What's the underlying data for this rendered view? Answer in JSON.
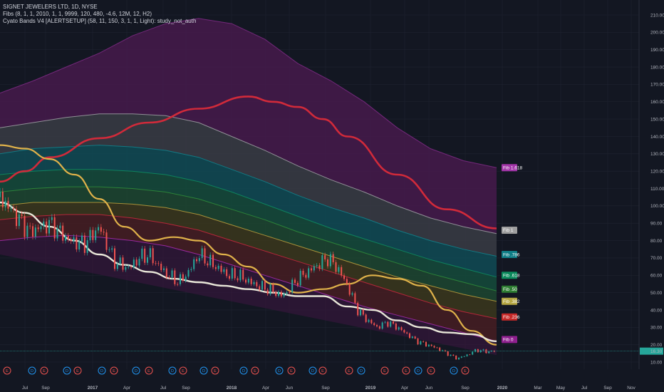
{
  "legend": {
    "line1": "SIGNET JEWELERS LTD, 1D, NYSE",
    "line2": "Fibs (8, 1, 1, 2010, 1, 1, 9999, 120, 480, -4.6, 12M, 12, H2)",
    "line3": "Cyato Bands V4 [ALERTSETUP] (58, 11, 150, 3, 1, 1, Light): study_not_auth"
  },
  "colors": {
    "background": "#131722",
    "grid": "#1f2330",
    "purple_band": "#4a1a4f",
    "grey_band": "#3c3f48",
    "teal_band": "#0f5760",
    "green_band": "#1d4a32",
    "olive_band": "#3d3a1c",
    "red_band": "#4a1d22",
    "red_line": "#d12a3a",
    "gold_line": "#e0b24a",
    "white_line": "#e8e6d8",
    "price_up": "#26a69a",
    "price_down": "#ef5350",
    "current_price_bg": "#26a69a"
  },
  "chart_data": {
    "type": "line",
    "title": "SIGNET JEWELERS LTD, 1D, NYSE",
    "ylim": [
      7,
      215
    ],
    "y_ticks": [
      "210.00",
      "200.00",
      "190.00",
      "180.00",
      "170.00",
      "160.00",
      "150.00",
      "140.00",
      "130.00",
      "120.00",
      "110.00",
      "100.00",
      "90.00",
      "80.00",
      "70.00",
      "60.00",
      "50.00",
      "40.00",
      "30.00",
      "20.00",
      "10.00"
    ],
    "x_ticks": [
      "Jul",
      "Sep",
      "2017",
      "Apr",
      "Jul",
      "Sep",
      "2018",
      "Apr",
      "Jun",
      "Sep",
      "2019",
      "Apr",
      "Jun",
      "Sep",
      "2020",
      "Mar",
      "May",
      "Jul",
      "Sep",
      "Nov"
    ],
    "current_price": "16.30",
    "fib_levels": [
      {
        "label": "Fib 1.618",
        "value": 122,
        "color": "#a335a8"
      },
      {
        "label": "Fib 1",
        "value": 86,
        "color": "#9e9e9e"
      },
      {
        "label": "Fib .786",
        "value": 72,
        "color": "#0e7d86"
      },
      {
        "label": "Fib .618",
        "value": 60,
        "color": "#0a8a5c"
      },
      {
        "label": "Fib .50",
        "value": 52,
        "color": "#2e7d32"
      },
      {
        "label": "Fib .382",
        "value": 45,
        "color": "#b5a642"
      },
      {
        "label": "Fib .236",
        "value": 36,
        "color": "#c62828"
      },
      {
        "label": "Fib 0",
        "value": 23,
        "color": "#8e1f8e"
      }
    ],
    "band_levels": [
      {
        "name": "1.618",
        "values": [
          165,
          172,
          180,
          188,
          198,
          205,
          208,
          205,
          196,
          182,
          172,
          160,
          145,
          133,
          126,
          122
        ]
      },
      {
        "name": "1",
        "values": [
          145,
          148,
          151,
          153,
          153,
          152,
          148,
          140,
          132,
          123,
          115,
          108,
          100,
          93,
          88,
          84
        ]
      },
      {
        "name": ".786",
        "values": [
          130,
          133,
          134,
          135,
          134,
          132,
          128,
          121,
          114,
          106,
          99,
          93,
          86,
          80,
          75,
          71
        ]
      },
      {
        "name": ".618",
        "values": [
          118,
          120,
          121,
          121,
          120,
          118,
          114,
          108,
          101,
          94,
          87,
          81,
          75,
          69,
          64,
          59
        ]
      },
      {
        "name": ".50",
        "values": [
          108,
          110,
          111,
          111,
          110,
          108,
          104,
          98,
          92,
          85,
          79,
          73,
          67,
          61,
          56,
          51
        ]
      },
      {
        "name": ".382",
        "values": [
          100,
          102,
          102,
          102,
          101,
          99,
          95,
          89,
          83,
          77,
          71,
          65,
          59,
          54,
          49,
          45
        ]
      },
      {
        "name": ".236",
        "values": [
          92,
          94,
          95,
          95,
          93,
          90,
          86,
          80,
          74,
          68,
          62,
          56,
          50,
          44,
          39,
          35
        ]
      },
      {
        "name": "0",
        "values": [
          80,
          82,
          83,
          82,
          80,
          77,
          72,
          66,
          60,
          54,
          48,
          42,
          37,
          32,
          27,
          22
        ]
      }
    ],
    "series": [
      {
        "name": "red",
        "x": [
          0,
          5,
          10,
          20,
          30,
          40,
          50,
          55,
          60,
          65,
          70,
          80,
          90,
          100
        ],
        "values": [
          114,
          120,
          128,
          139,
          148,
          156,
          163,
          160,
          157,
          150,
          140,
          118,
          98,
          87
        ]
      },
      {
        "name": "gold",
        "x": [
          0,
          5,
          10,
          15,
          20,
          25,
          30,
          35,
          40,
          45,
          50,
          55,
          60,
          65,
          70,
          75,
          80,
          85,
          90,
          95,
          100
        ],
        "values": [
          135,
          133,
          127,
          118,
          104,
          88,
          80,
          82,
          80,
          72,
          65,
          55,
          50,
          52,
          55,
          60,
          58,
          54,
          40,
          28,
          20
        ]
      },
      {
        "name": "white",
        "x": [
          0,
          5,
          10,
          15,
          20,
          25,
          30,
          35,
          40,
          45,
          50,
          55,
          60,
          65,
          70,
          75,
          80,
          85,
          90,
          95,
          100
        ],
        "values": [
          102,
          96,
          88,
          80,
          72,
          66,
          62,
          58,
          56,
          54,
          52,
          50,
          48,
          48,
          42,
          40,
          34,
          30,
          27,
          26,
          22
        ]
      },
      {
        "name": "price",
        "x": [
          0,
          3,
          6,
          10,
          14,
          17,
          20,
          23,
          26,
          28,
          30,
          33,
          36,
          38,
          40,
          43,
          46,
          48,
          51,
          54,
          57,
          60,
          62,
          64,
          66,
          68,
          70,
          72,
          74,
          76,
          78,
          80,
          82,
          84,
          86,
          88,
          90,
          92,
          94,
          96,
          98,
          100
        ],
        "values": [
          105,
          95,
          85,
          90,
          80,
          78,
          88,
          68,
          64,
          70,
          72,
          62,
          56,
          62,
          72,
          66,
          60,
          60,
          55,
          52,
          48,
          58,
          62,
          66,
          70,
          64,
          54,
          40,
          34,
          30,
          33,
          30,
          26,
          22,
          20,
          18,
          15,
          12,
          14,
          17,
          16,
          16.3
        ]
      }
    ],
    "event_markers": [
      {
        "label": "E",
        "type": "earnings"
      },
      {
        "label": "D",
        "type": "dividend"
      },
      {
        "label": "E",
        "type": "earnings"
      },
      {
        "label": "D",
        "type": "dividend"
      },
      {
        "label": "E",
        "type": "earnings"
      },
      {
        "label": "D",
        "type": "dividend"
      },
      {
        "label": "E",
        "type": "earnings"
      },
      {
        "label": "D",
        "type": "dividend"
      },
      {
        "label": "E",
        "type": "earnings"
      },
      {
        "label": "D",
        "type": "dividend"
      },
      {
        "label": "E",
        "type": "earnings"
      },
      {
        "label": "D",
        "type": "dividend"
      },
      {
        "label": "E",
        "type": "earnings"
      },
      {
        "label": "D",
        "type": "dividend"
      },
      {
        "label": "E",
        "type": "earnings"
      },
      {
        "label": "D",
        "type": "dividend"
      },
      {
        "label": "E",
        "type": "earnings"
      },
      {
        "label": "D",
        "type": "dividend"
      },
      {
        "label": "E",
        "type": "earnings"
      },
      {
        "label": "E",
        "type": "earnings"
      },
      {
        "label": "D",
        "type": "dividend"
      },
      {
        "label": "E",
        "type": "earnings"
      },
      {
        "label": "E",
        "type": "earnings"
      },
      {
        "label": "D",
        "type": "dividend"
      },
      {
        "label": "E",
        "type": "earnings"
      },
      {
        "label": "D",
        "type": "dividend"
      },
      {
        "label": "E",
        "type": "earnings"
      }
    ]
  }
}
